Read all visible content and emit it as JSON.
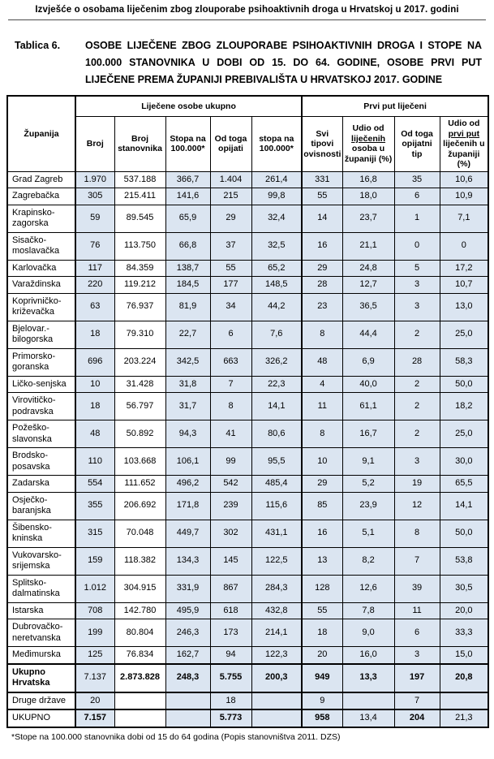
{
  "page_header": {
    "title": "Izvješće o osobama liječenim zbog zlouporabe psihoaktivnih droga u Hrvatskoj u 2017. godini"
  },
  "caption": {
    "label": "Tablica 6.",
    "text": "OSOBE LIJEČENE ZBOG ZLOUPORABE PSIHOAKTIVNIH DROGA I STOPE NA 100.000 STANOVNIKA U DOBI OD 15. DO 64. GODINE, OSOBE PRVI PUT LIJEČENE PREMA ŽUPANIJI PREBIVALIŠTA U HRVATSKOJ 2017. GODINE"
  },
  "colors": {
    "cell_blue": "#dbe5f1",
    "border": "#000000"
  },
  "table": {
    "corner_header": "Županija",
    "group_headers": [
      {
        "label": "Liječene osobe ukupno",
        "colspan": 5
      },
      {
        "label": "Prvi put liječeni",
        "colspan": 4
      }
    ],
    "col_headers": [
      {
        "name": "broj",
        "segments": [
          {
            "t": "Broj"
          }
        ]
      },
      {
        "name": "broj-stanovnika",
        "segments": [
          {
            "t": "Broj stanovnika"
          }
        ]
      },
      {
        "name": "stopa-na-100000",
        "segments": [
          {
            "t": "Stopa na 100.000*"
          }
        ]
      },
      {
        "name": "od-toga-opijati",
        "segments": [
          {
            "t": "Od toga opijati"
          }
        ]
      },
      {
        "name": "stopa-na-100000-opijati",
        "segments": [
          {
            "t": "stopa na 100.000*"
          }
        ]
      },
      {
        "name": "svi-tipovi-ovisnosti",
        "segments": [
          {
            "t": "Svi tipovi ovisnosti"
          }
        ]
      },
      {
        "name": "udio-od-lijecenih",
        "segments": [
          {
            "t": "Udio od "
          },
          {
            "t": "liječenih",
            "u": true
          },
          {
            "t": " osoba u županiji (%)"
          }
        ]
      },
      {
        "name": "od-toga-opijatni-tip",
        "segments": [
          {
            "t": "Od toga opijatni tip"
          }
        ]
      },
      {
        "name": "udio-od-prvi-put",
        "segments": [
          {
            "t": "Udio od "
          },
          {
            "t": "prvi put",
            "u": true
          },
          {
            "t": " liječenih u županiji (%)"
          }
        ]
      }
    ],
    "rows": [
      {
        "name": "Grad Zagreb",
        "values": [
          "1.970",
          "537.188",
          "366,7",
          "1.404",
          "261,4",
          "331",
          "16,8",
          "35",
          "10,6"
        ]
      },
      {
        "name": "Zagrebačka",
        "values": [
          "305",
          "215.411",
          "141,6",
          "215",
          "99,8",
          "55",
          "18,0",
          "6",
          "10,9"
        ]
      },
      {
        "name": "Krapinsko-zagorska",
        "values": [
          "59",
          "89.545",
          "65,9",
          "29",
          "32,4",
          "14",
          "23,7",
          "1",
          "7,1"
        ]
      },
      {
        "name": "Sisačko-moslavačka",
        "values": [
          "76",
          "113.750",
          "66,8",
          "37",
          "32,5",
          "16",
          "21,1",
          "0",
          "0"
        ]
      },
      {
        "name": "Karlovačka",
        "values": [
          "117",
          "84.359",
          "138,7",
          "55",
          "65,2",
          "29",
          "24,8",
          "5",
          "17,2"
        ]
      },
      {
        "name": "Varaždinska",
        "values": [
          "220",
          "119.212",
          "184,5",
          "177",
          "148,5",
          "28",
          "12,7",
          "3",
          "10,7"
        ]
      },
      {
        "name": "Koprivničko-križevačka",
        "values": [
          "63",
          "76.937",
          "81,9",
          "34",
          "44,2",
          "23",
          "36,5",
          "3",
          "13,0"
        ]
      },
      {
        "name": "Bjelovar.-bilogorska",
        "values": [
          "18",
          "79.310",
          "22,7",
          "6",
          "7,6",
          "8",
          "44,4",
          "2",
          "25,0"
        ]
      },
      {
        "name": "Primorsko-goranska",
        "values": [
          "696",
          "203.224",
          "342,5",
          "663",
          "326,2",
          "48",
          "6,9",
          "28",
          "58,3"
        ]
      },
      {
        "name": "Ličko-senjska",
        "values": [
          "10",
          "31.428",
          "31,8",
          "7",
          "22,3",
          "4",
          "40,0",
          "2",
          "50,0"
        ]
      },
      {
        "name": "Virovitičko-podravska",
        "values": [
          "18",
          "56.797",
          "31,7",
          "8",
          "14,1",
          "11",
          "61,1",
          "2",
          "18,2"
        ]
      },
      {
        "name": "Požeško-slavonska",
        "values": [
          "48",
          "50.892",
          "94,3",
          "41",
          "80,6",
          "8",
          "16,7",
          "2",
          "25,0"
        ]
      },
      {
        "name": "Brodsko-posavska",
        "values": [
          "110",
          "103.668",
          "106,1",
          "99",
          "95,5",
          "10",
          "9,1",
          "3",
          "30,0"
        ]
      },
      {
        "name": "Zadarska",
        "values": [
          "554",
          "111.652",
          "496,2",
          "542",
          "485,4",
          "29",
          "5,2",
          "19",
          "65,5"
        ]
      },
      {
        "name": "Osječko-baranjska",
        "values": [
          "355",
          "206.692",
          "171,8",
          "239",
          "115,6",
          "85",
          "23,9",
          "12",
          "14,1"
        ]
      },
      {
        "name": "Šibensko-kninska",
        "values": [
          "315",
          "70.048",
          "449,7",
          "302",
          "431,1",
          "16",
          "5,1",
          "8",
          "50,0"
        ]
      },
      {
        "name": "Vukovarsko-srijemska",
        "values": [
          "159",
          "118.382",
          "134,3",
          "145",
          "122,5",
          "13",
          "8,2",
          "7",
          "53,8"
        ]
      },
      {
        "name": "Splitsko-dalmatinska",
        "values": [
          "1.012",
          "304.915",
          "331,9",
          "867",
          "284,3",
          "128",
          "12,6",
          "39",
          "30,5"
        ]
      },
      {
        "name": "Istarska",
        "values": [
          "708",
          "142.780",
          "495,9",
          "618",
          "432,8",
          "55",
          "7,8",
          "11",
          "20,0"
        ]
      },
      {
        "name": "Dubrovačko-neretvanska",
        "values": [
          "199",
          "80.804",
          "246,3",
          "173",
          "214,1",
          "18",
          "9,0",
          "6",
          "33,3"
        ]
      },
      {
        "name": "Međimurska",
        "values": [
          "125",
          "76.834",
          "162,7",
          "94",
          "122,3",
          "20",
          "16,0",
          "3",
          "15,0"
        ]
      },
      {
        "name": "Ukupno Hrvatska",
        "name_bold": true,
        "thick_top": true,
        "values": [
          "7.137",
          "2.873.828",
          "248,3",
          "5.755",
          "200,3",
          "949",
          "13,3",
          "197",
          "20,8"
        ],
        "bold_cells": [
          1,
          2,
          3,
          4,
          5,
          6,
          7,
          8
        ]
      },
      {
        "name": "Druge države",
        "thick_top": true,
        "values": [
          "20",
          "",
          "",
          "18",
          "",
          "9",
          "",
          "7",
          ""
        ]
      },
      {
        "name": "UKUPNO",
        "thick_top": true,
        "values": [
          "7.157",
          "",
          "",
          "5.773",
          "",
          "958",
          "13,4",
          "204",
          "21,3"
        ],
        "bold_cells": [
          0,
          3,
          5,
          7
        ]
      }
    ],
    "footnote": "*Stope na 100.000 stanovnika dobi od 15 do 64 godina (Popis stanovništva 2011. DZS)"
  }
}
